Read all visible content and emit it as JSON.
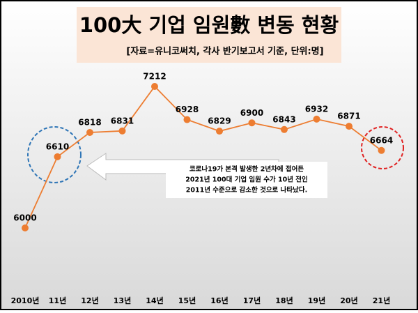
{
  "chart_data": {
    "type": "line",
    "title": "100大 기업 임원數 변동 현황",
    "subtitle": "[자료=유니코써치, 각사 반기보고서 기준, 단위:명]",
    "categories": [
      "2010년",
      "11년",
      "12년",
      "13년",
      "14년",
      "15년",
      "16년",
      "17년",
      "18년",
      "19년",
      "20년",
      "21년"
    ],
    "series": [
      {
        "color": "#ed7d31",
        "values": [
          6000,
          6610,
          6818,
          6831,
          7212,
          6928,
          6829,
          6900,
          6843,
          6932,
          6871,
          6664
        ]
      }
    ],
    "annotation": [
      "코로나19가 본격 발생한 2년차에 접어든",
      "2021년 100대 기업 임원 수가 10년 전인",
      "2011년 수준으로 감소한 것으로 나타났다."
    ]
  }
}
